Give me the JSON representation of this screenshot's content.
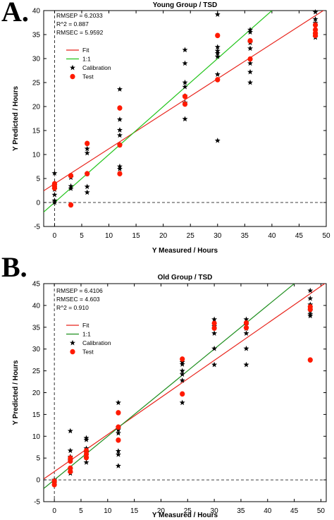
{
  "chart_data": [
    {
      "type": "scatter",
      "panel_label": "A.",
      "title": "Young Group / TSD",
      "xlabel": "Y Measured / Hours",
      "ylabel": "Y Predicted / Hours",
      "xlim": [
        -2,
        50
      ],
      "ylim": [
        -5,
        40
      ],
      "xticks": [
        0,
        5,
        10,
        15,
        20,
        25,
        30,
        35,
        40,
        45,
        50
      ],
      "yticks": [
        -5,
        0,
        5,
        10,
        15,
        20,
        25,
        30,
        35,
        40
      ],
      "stats": [
        "RMSEP = 6.2033",
        "R^2 = 0.887",
        "RMSEC = 5.9592"
      ],
      "legend": {
        "position": "top-left",
        "entries": [
          {
            "label": "Fit",
            "color": "#e8231b",
            "kind": "line"
          },
          {
            "label": "1:1",
            "color": "#22c41b",
            "kind": "line"
          },
          {
            "label": "Calibration",
            "color": "#000000",
            "kind": "star"
          },
          {
            "label": "Test",
            "color": "#ff1a00",
            "kind": "dot"
          }
        ]
      },
      "fit_line": {
        "color": "#e8231b",
        "slope": 0.73,
        "intercept": 3.9
      },
      "identity_line": {
        "color": "#22c41b",
        "slope": 1.0,
        "intercept": 0
      },
      "calibration": [
        [
          0,
          6.1
        ],
        [
          0,
          3.6
        ],
        [
          0,
          2.7
        ],
        [
          0,
          1.6
        ],
        [
          0,
          0.4
        ],
        [
          0,
          0.0
        ],
        [
          3,
          5.2
        ],
        [
          3,
          3.4
        ],
        [
          3,
          2.9
        ],
        [
          6,
          11.2
        ],
        [
          6,
          10.3
        ],
        [
          6,
          6.0
        ],
        [
          6,
          3.3
        ],
        [
          6,
          2.1
        ],
        [
          12,
          23.6
        ],
        [
          12,
          17.3
        ],
        [
          12,
          15.1
        ],
        [
          12,
          14.0
        ],
        [
          12,
          12.0
        ],
        [
          12,
          7.5
        ],
        [
          12,
          7.0
        ],
        [
          24,
          31.8
        ],
        [
          24,
          29.0
        ],
        [
          24,
          25.0
        ],
        [
          24,
          24.1
        ],
        [
          24,
          22.2
        ],
        [
          24,
          20.8
        ],
        [
          24,
          17.4
        ],
        [
          30,
          39.2
        ],
        [
          30,
          32.4
        ],
        [
          30,
          31.6
        ],
        [
          30,
          31.1
        ],
        [
          30,
          30.4
        ],
        [
          30,
          26.7
        ],
        [
          30,
          12.9
        ],
        [
          36,
          36.0
        ],
        [
          36,
          35.5
        ],
        [
          36,
          33.3
        ],
        [
          36,
          32.1
        ],
        [
          36,
          29.0
        ],
        [
          36,
          27.2
        ],
        [
          36,
          25.0
        ],
        [
          48,
          39.7
        ],
        [
          48,
          38.2
        ],
        [
          48,
          37.4
        ],
        [
          48,
          35.8
        ],
        [
          48,
          35.1
        ],
        [
          48,
          34.4
        ]
      ],
      "test": [
        [
          0,
          3.9
        ],
        [
          0,
          3.4
        ],
        [
          0,
          3.0
        ],
        [
          3,
          5.6
        ],
        [
          3,
          -0.5
        ],
        [
          6,
          12.3
        ],
        [
          6,
          6.0
        ],
        [
          12,
          19.7
        ],
        [
          12,
          12.0
        ],
        [
          12,
          6.0
        ],
        [
          24,
          22.1
        ],
        [
          24,
          20.5
        ],
        [
          30,
          34.8
        ],
        [
          30,
          25.6
        ],
        [
          36,
          33.7
        ],
        [
          36,
          29.9
        ],
        [
          48,
          37.0
        ],
        [
          48,
          36.0
        ],
        [
          48,
          35.3
        ],
        [
          48,
          34.8
        ]
      ]
    },
    {
      "type": "scatter",
      "panel_label": "B.",
      "title": "Old Group / TSD",
      "xlabel": "Y Measured / Hours",
      "ylabel": "Y Predicted / Hours",
      "xlim": [
        -2,
        51
      ],
      "ylim": [
        -5,
        45
      ],
      "xticks": [
        0,
        5,
        10,
        15,
        20,
        25,
        30,
        35,
        40,
        45,
        50
      ],
      "yticks": [
        -5,
        0,
        5,
        10,
        15,
        20,
        25,
        30,
        35,
        40,
        45
      ],
      "stats": [
        "RMSEP = 6.4106",
        "RMSEC = 4.603",
        "R^2 = 0.910"
      ],
      "legend": {
        "position": "top-left",
        "entries": [
          {
            "label": "Fit",
            "color": "#e8231b",
            "kind": "line"
          },
          {
            "label": "1:1",
            "color": "#1f8f1f",
            "kind": "line"
          },
          {
            "label": "Calibration",
            "color": "#000000",
            "kind": "star"
          },
          {
            "label": "Test",
            "color": "#ff1a00",
            "kind": "dot"
          }
        ]
      },
      "fit_line": {
        "color": "#e8231b",
        "slope": 0.85,
        "intercept": 1.9
      },
      "identity_line": {
        "color": "#1f8f1f",
        "slope": 1.0,
        "intercept": 0
      },
      "calibration": [
        [
          0,
          0.0
        ],
        [
          0,
          -0.3
        ],
        [
          0,
          -0.8
        ],
        [
          3,
          11.2
        ],
        [
          3,
          6.7
        ],
        [
          3,
          5.3
        ],
        [
          3,
          4.5
        ],
        [
          3,
          2.4
        ],
        [
          3,
          1.5
        ],
        [
          6,
          9.6
        ],
        [
          6,
          9.2
        ],
        [
          6,
          7.2
        ],
        [
          6,
          6.2
        ],
        [
          6,
          5.1
        ],
        [
          6,
          4.0
        ],
        [
          12,
          17.7
        ],
        [
          12,
          12.1
        ],
        [
          12,
          11.5
        ],
        [
          12,
          10.7
        ],
        [
          12,
          6.6
        ],
        [
          12,
          5.8
        ],
        [
          12,
          3.2
        ],
        [
          24,
          27.0
        ],
        [
          24,
          26.5
        ],
        [
          24,
          25.0
        ],
        [
          24,
          24.2
        ],
        [
          24,
          22.8
        ],
        [
          24,
          17.7
        ],
        [
          30,
          36.8
        ],
        [
          30,
          35.2
        ],
        [
          30,
          33.6
        ],
        [
          30,
          30.1
        ],
        [
          30,
          26.4
        ],
        [
          36,
          36.8
        ],
        [
          36,
          35.5
        ],
        [
          36,
          34.7
        ],
        [
          36,
          33.6
        ],
        [
          36,
          30.1
        ],
        [
          36,
          26.4
        ],
        [
          48,
          43.4
        ],
        [
          48,
          41.6
        ],
        [
          48,
          40.2
        ],
        [
          48,
          38.8
        ],
        [
          48,
          38.0
        ],
        [
          48,
          37.6
        ]
      ],
      "test": [
        [
          0,
          -0.3
        ],
        [
          0,
          -1.1
        ],
        [
          3,
          5.0
        ],
        [
          3,
          4.3
        ],
        [
          3,
          2.7
        ],
        [
          3,
          1.9
        ],
        [
          6,
          6.7
        ],
        [
          6,
          5.9
        ],
        [
          6,
          5.1
        ],
        [
          12,
          15.4
        ],
        [
          12,
          12.1
        ],
        [
          12,
          9.1
        ],
        [
          24,
          27.7
        ],
        [
          24,
          19.7
        ],
        [
          30,
          35.9
        ],
        [
          30,
          34.8
        ],
        [
          36,
          36.0
        ],
        [
          36,
          34.9
        ],
        [
          48,
          39.7
        ],
        [
          48,
          39.1
        ],
        [
          48,
          27.5
        ]
      ]
    }
  ]
}
